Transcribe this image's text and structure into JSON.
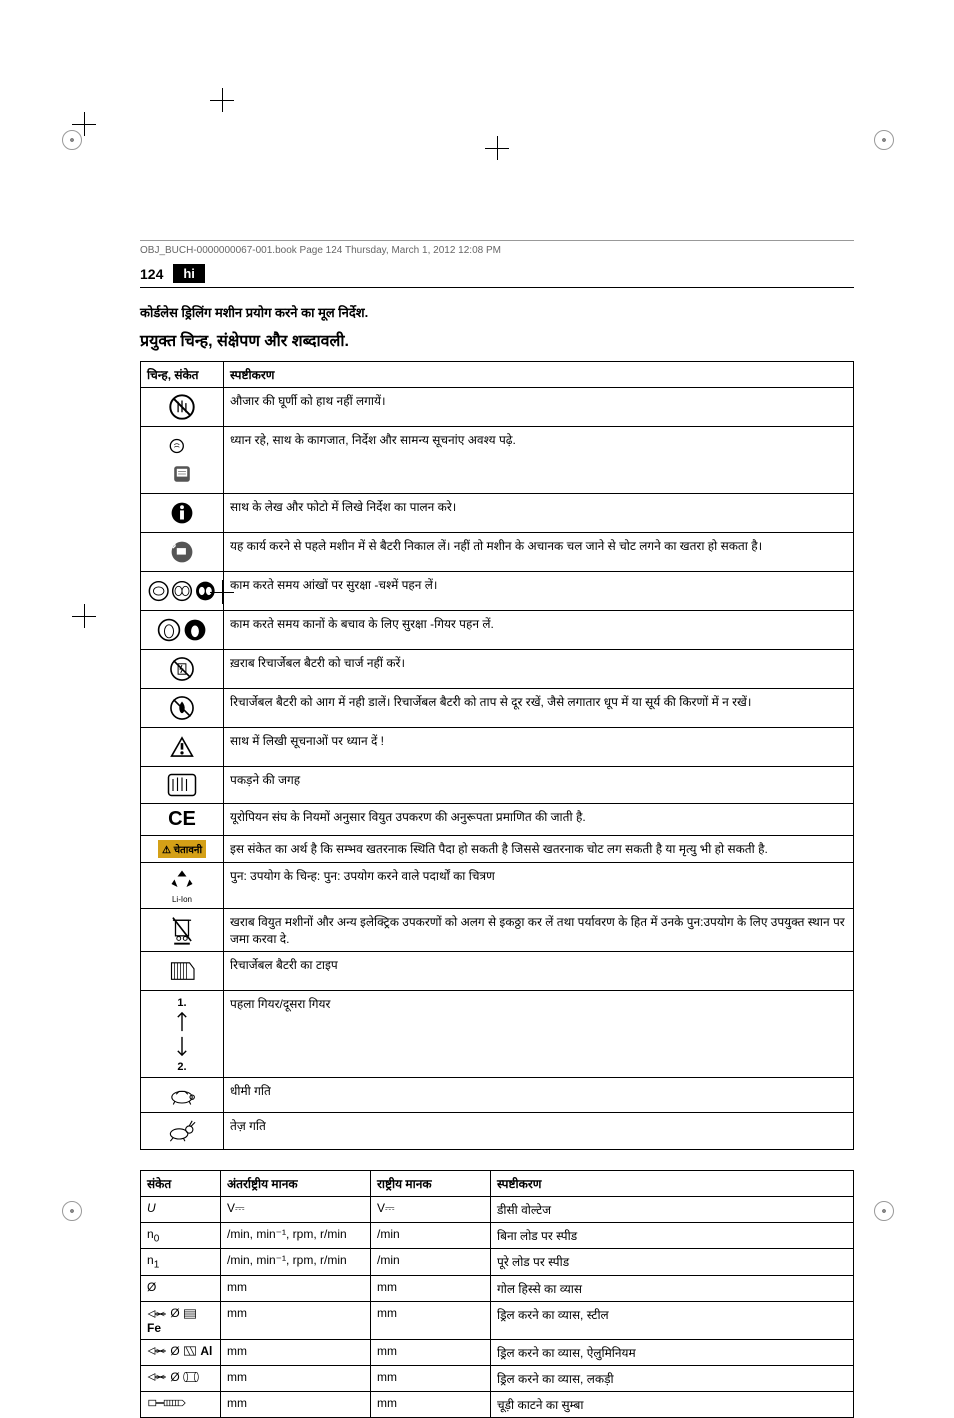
{
  "header": {
    "doc_info": "OBJ_BUCH-0000000067-001.book  Page 124  Thursday, March 1, 2012  12:08 PM",
    "page_number": "124",
    "lang": "hi"
  },
  "titles": {
    "subtitle": "कोर्डलेस ड्रिलिंग मशीन प्रयोग करने का मूल निर्देश.",
    "section": "प्रयुक्त चिन्ह, संक्षेपण और शब्दावली."
  },
  "table1": {
    "headers": [
      "चिन्ह, संकेत",
      "स्पष्टीकरण"
    ],
    "rows": [
      {
        "icon": "no-touch",
        "text": "औजार की घूर्णी को हाथ नहीं लगायें।"
      },
      {
        "icon": "read-docs",
        "text": "ध्यान रहे, साथ के कागजात, निर्देश और सामन्य सूचनांए अवश्य पढ़े."
      },
      {
        "icon": "info",
        "text": "साथ के लेख और फोटो में लिखे निर्देश का पालन करे।"
      },
      {
        "icon": "remove-battery",
        "text": "यह कार्य करने से पहले मशीन में से बैटरी निकाल लें। नहीं तो मशीन के अचानक चल जाने से चोट लगने का खतरा हो सकता है।"
      },
      {
        "icon": "goggles",
        "text": "काम करते समय आंखों पर सुरक्षा -चश्में पहन लें।"
      },
      {
        "icon": "ear-protection",
        "text": "काम करते समय कानों के बचाव के लिए सुरक्षा -गियर पहन लें."
      },
      {
        "icon": "no-charge",
        "text": "ख़राब रिचार्जेबल बैटरी को चार्ज नहीं करें।"
      },
      {
        "icon": "no-fire",
        "text": "रिचार्जेबल बैटरी को आग में नही डालें। रिचार्जेबल बैटरी को ताप से दूर रखें, जैसे लगातार धूप में या सूर्य की किरणों में न रखें।"
      },
      {
        "icon": "warning-triangle",
        "text": "साथ में लिखी सूचनाओं पर ध्यान दें !"
      },
      {
        "icon": "grip",
        "text": "पकड़ने की जगह"
      },
      {
        "icon": "ce",
        "text": "यूरोपियन संघ के नियमों अनुसार वियुत उपकरण की अनुरूपता प्रमाणित की जाती है."
      },
      {
        "icon": "warning-badge",
        "text": "इस संकेत का अर्थ है कि सम्भव खतरनाक स्थिति पैदा हो सकती है जिससे खतरनाक चोट लग सकती है या मृत्यु भी हो सकती है."
      },
      {
        "icon": "recycle",
        "text": "पुन: उपयोग के चिन्ह: पुन: उपयोग करने वाले पदार्थों का चित्रण"
      },
      {
        "icon": "weee",
        "text": "खराब वियुत मशीनों और अन्य इलेक्ट्रिक उपकरणों को अलग से इकठ्ठा कर लें तथा पर्यावरण के हित में उनके पुन:उपयोग के लिए उपयुक्त स्थान पर जमा करवा दे."
      },
      {
        "icon": "battery-type",
        "text": "रिचार्जेबल बैटरी का टाइप"
      },
      {
        "icon": "gears",
        "text": "पहला गियर/दूसरा गियर"
      },
      {
        "icon": "turtle",
        "text": "धीमी गति"
      },
      {
        "icon": "rabbit",
        "text": "तेज़ गति"
      }
    ]
  },
  "table2": {
    "headers": [
      "संकेत",
      "अंतर्राष्ट्रीय मानक",
      "राष्ट्रीय मानक",
      "स्पष्टीकरण"
    ],
    "rows": [
      {
        "symbol": "U",
        "intl": "V⎓",
        "natl": "V⎓",
        "desc": "डीसी वोल्टेज"
      },
      {
        "symbol": "n₀",
        "intl": "/min, min⁻¹, rpm, r/min",
        "natl": "/min",
        "desc": "बिना लोड पर स्पीड"
      },
      {
        "symbol": "n₁",
        "intl": "/min, min⁻¹, rpm, r/min",
        "natl": "/min",
        "desc": "पूरे लोड पर स्पीड"
      },
      {
        "symbol": "Ø",
        "intl": "mm",
        "natl": "mm",
        "desc": "गोल हिस्से का व्यास"
      },
      {
        "symbol": "drill-fe",
        "intl": "mm",
        "natl": "mm",
        "desc": "ड्रिल करने का व्यास, स्टील"
      },
      {
        "symbol": "drill-al",
        "intl": "mm",
        "natl": "mm",
        "desc": "ड्रिल करने का व्यास, ऐलुमिनियम"
      },
      {
        "symbol": "drill-wood",
        "intl": "mm",
        "natl": "mm",
        "desc": "ड्रिल करने का व्यास, लकड़ी"
      },
      {
        "symbol": "thread",
        "intl": "mm",
        "natl": "mm",
        "desc": "चूड़ी काटने का सुम्बा"
      }
    ]
  },
  "warning_label": "चेतावनी",
  "ce_label": "CE",
  "recycle_label": "Li-Ion",
  "fe_label": "Fe",
  "al_label": "Al",
  "gear1": "1.",
  "gear2": "2."
}
